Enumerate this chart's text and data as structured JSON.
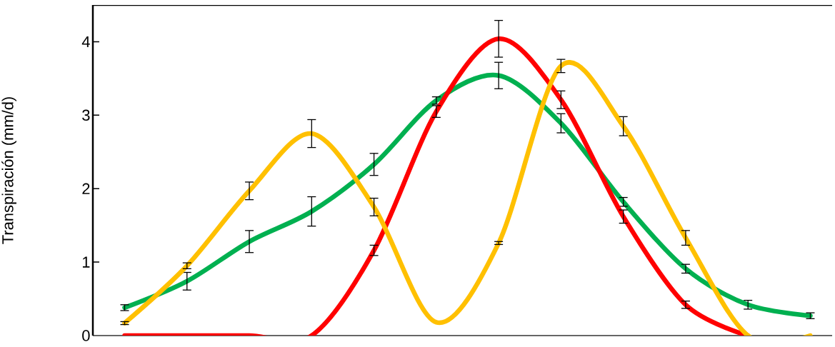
{
  "chart_data": {
    "type": "line",
    "ylabel": "Transpiración (mm/d)",
    "categories": [
      null,
      null,
      null,
      null,
      null,
      null,
      null,
      null,
      null,
      null,
      null,
      null
    ],
    "series": [
      {
        "color": "#00b050",
        "values": [
          0.38,
          0.74,
          1.28,
          1.69,
          2.33,
          3.2,
          3.54,
          2.89,
          1.82,
          0.91,
          0.42,
          0.27
        ],
        "errors": [
          0.04,
          0.12,
          0.15,
          0.2,
          0.15,
          0.05,
          0.18,
          0.13,
          0.06,
          0.06,
          0.06,
          0.04
        ]
      },
      {
        "color": "#ff0000",
        "values": [
          0,
          0,
          0,
          0,
          1.16,
          3.05,
          4.04,
          3.21,
          1.62,
          0.42,
          0,
          null
        ],
        "errors": [
          null,
          null,
          null,
          null,
          0.07,
          0.08,
          0.25,
          0.12,
          0.09,
          0.05,
          null,
          null
        ]
      },
      {
        "color": "#ffc000",
        "values": [
          0.17,
          0.95,
          1.97,
          2.75,
          1.75,
          0.18,
          1.26,
          3.67,
          2.85,
          1.33,
          0,
          0
        ],
        "errors": [
          0.02,
          0.04,
          0.12,
          0.19,
          0.12,
          null,
          0.02,
          0.09,
          0.13,
          0.1,
          null,
          null
        ]
      }
    ],
    "ylim": [
      0,
      4.5
    ],
    "yticks": [
      0,
      1,
      2,
      3,
      4
    ],
    "tick_labels": "y",
    "marker": "none",
    "line_style": "solid"
  }
}
